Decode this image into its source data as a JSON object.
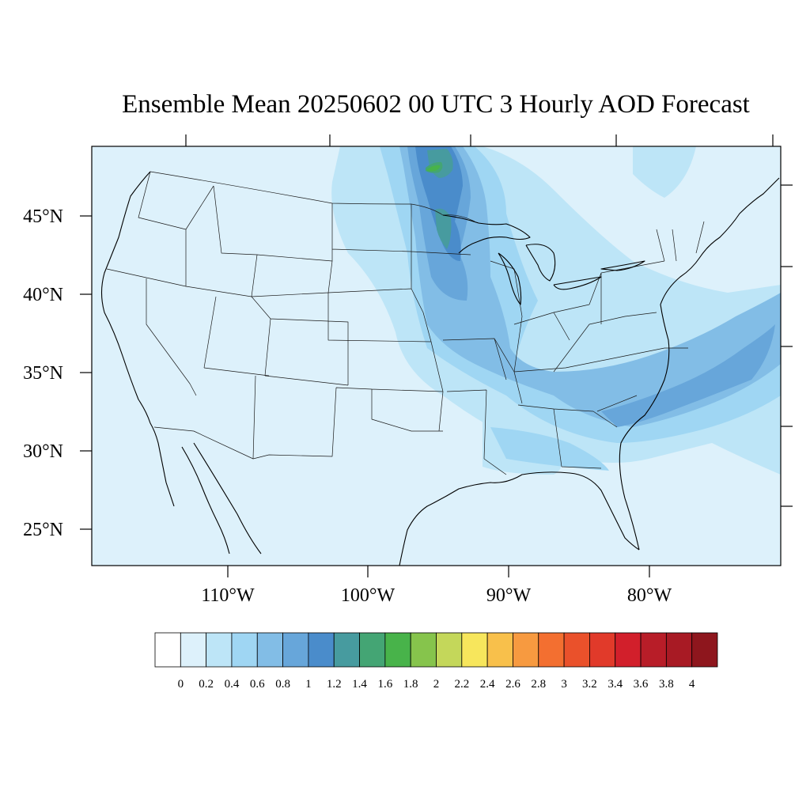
{
  "title": "Ensemble Mean 20250602 00 UTC 3 Hourly AOD Forecast",
  "colors": {
    "background_field": "#ddf1fb",
    "map_frame": "#000000"
  },
  "map": {
    "projection": "lambert-conformal",
    "region": "CONUS",
    "lon_ticks": [
      "110°W",
      "100°W",
      "90°W",
      "80°W"
    ],
    "lat_ticks": [
      "45°N",
      "40°N",
      "35°N",
      "30°N",
      "25°N"
    ]
  },
  "colorbar": {
    "labels": [
      "0",
      "0.2",
      "0.4",
      "0.6",
      "0.8",
      "1",
      "1.2",
      "1.4",
      "1.6",
      "1.8",
      "2",
      "2.2",
      "2.4",
      "2.6",
      "2.8",
      "3",
      "3.2",
      "3.4",
      "3.6",
      "3.8",
      "4"
    ],
    "colors": [
      "#ffffff",
      "#ddf1fb",
      "#bde5f7",
      "#9fd6f3",
      "#82bde6",
      "#67a6da",
      "#4a8ccb",
      "#479b9f",
      "#44a574",
      "#48b34a",
      "#86c44c",
      "#c4d75a",
      "#f7e65c",
      "#f8c04b",
      "#f79a40",
      "#f36f30",
      "#ea512b",
      "#e13a2a",
      "#d21f2b",
      "#b81d28",
      "#a81a24",
      "#8e161d"
    ]
  },
  "field_features": [
    {
      "name": "plume-great-lakes-north",
      "level": "1.6-1.8"
    },
    {
      "name": "plume-upper-midwest",
      "level": "1.0-1.4"
    },
    {
      "name": "plume-mississippi-valley",
      "level": "0.6-0.8"
    },
    {
      "name": "plume-southeast-atlantic",
      "level": "0.8-1.0"
    }
  ]
}
